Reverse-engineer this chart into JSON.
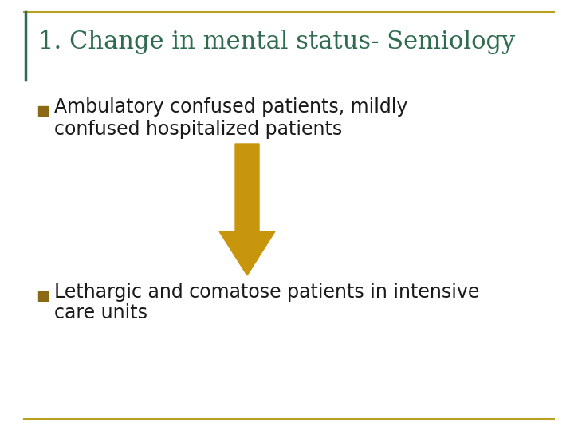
{
  "title": "1. Change in mental status- Semiology",
  "title_color": "#2E6B4F",
  "title_fontsize": 22,
  "bullet_color": "#8B6914",
  "bullet_text_color": "#1a1a1a",
  "bullet_fontsize": 17,
  "bullet1_line1": "Ambulatory confused patients, mildly",
  "bullet1_line2": "confused hospitalized patients",
  "bullet2_line1": "Lethargic and comatose patients in intensive",
  "bullet2_line2": "care units",
  "arrow_color": "#C8960C",
  "bg_color": "#FFFFFF",
  "border_color": "#B8A020",
  "title_left_line_color": "#2E6B4F"
}
